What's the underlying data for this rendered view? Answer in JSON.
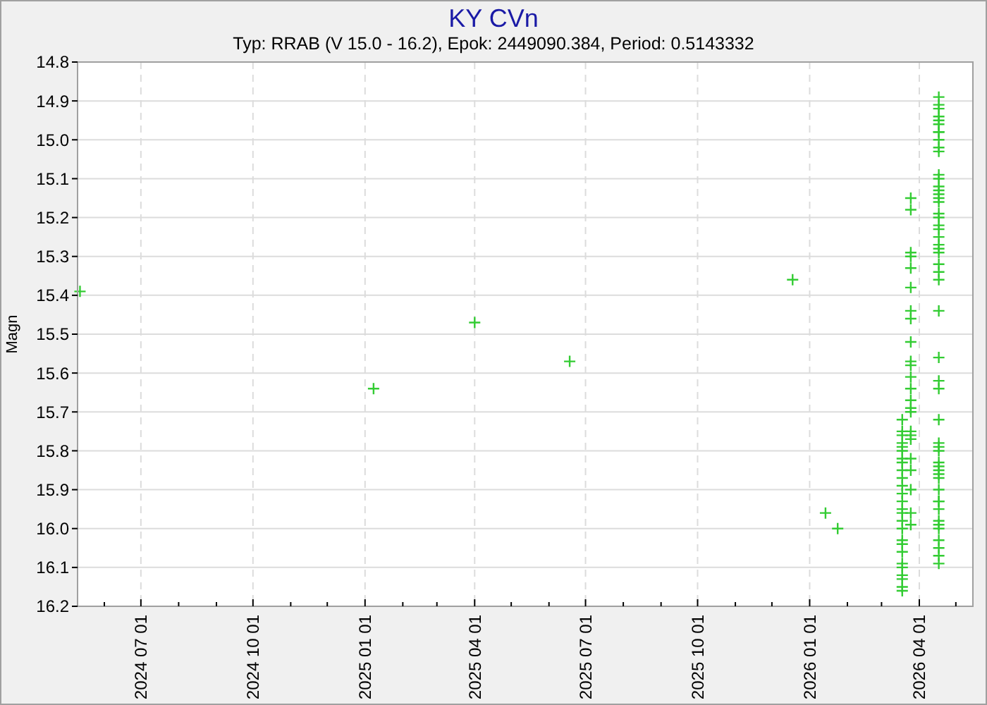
{
  "chart_data": {
    "type": "scatter",
    "title": "KY CVn",
    "subtitle": "Typ: RRAB (V 15.0 - 16.2), Epok: 2449090.384, Period: 0.5143332",
    "ylabel": "Magn",
    "xlim": [
      "2024-05-10",
      "2026-05-15"
    ],
    "ylim": [
      16.2,
      14.8
    ],
    "xticks": [
      {
        "value": "2024-06-01",
        "label": null
      },
      {
        "value": "2024-07-01",
        "label": "2024 07 01"
      },
      {
        "value": "2024-08-01",
        "label": null
      },
      {
        "value": "2024-09-01",
        "label": null
      },
      {
        "value": "2024-10-01",
        "label": "2024 10 01"
      },
      {
        "value": "2024-11-01",
        "label": null
      },
      {
        "value": "2024-12-01",
        "label": null
      },
      {
        "value": "2025-01-01",
        "label": "2025 01 01"
      },
      {
        "value": "2025-02-01",
        "label": null
      },
      {
        "value": "2025-03-01",
        "label": null
      },
      {
        "value": "2025-04-01",
        "label": "2025 04 01"
      },
      {
        "value": "2025-05-01",
        "label": null
      },
      {
        "value": "2025-06-01",
        "label": null
      },
      {
        "value": "2025-07-01",
        "label": "2025 07 01"
      },
      {
        "value": "2025-08-01",
        "label": null
      },
      {
        "value": "2025-09-01",
        "label": null
      },
      {
        "value": "2025-10-01",
        "label": "2025 10 01"
      },
      {
        "value": "2025-11-01",
        "label": null
      },
      {
        "value": "2025-12-01",
        "label": null
      },
      {
        "value": "2026-01-01",
        "label": "2026 01 01"
      },
      {
        "value": "2026-02-01",
        "label": null
      },
      {
        "value": "2026-03-01",
        "label": null
      },
      {
        "value": "2026-04-01",
        "label": "2026 04 01"
      },
      {
        "value": "2026-05-01",
        "label": null
      }
    ],
    "yticks": [
      14.8,
      14.9,
      {
        "value": 15,
        "label": "15.0"
      },
      15.1,
      15.2,
      15.3,
      15.4,
      15.5,
      15.6,
      15.7,
      15.8,
      15.9,
      {
        "value": 16,
        "label": "16.0"
      },
      16.1,
      16.2
    ],
    "grid": true,
    "marker": "cross",
    "series": [
      {
        "color": "#33cc33",
        "x": [
          "2024-05-12",
          "2025-01-08",
          "2025-04-01",
          "2025-06-18",
          "2025-12-18",
          "2026-01-14",
          "2026-01-24",
          "2026-03-18",
          "2026-03-18",
          "2026-03-18",
          "2026-03-18",
          "2026-03-18",
          "2026-03-18",
          "2026-03-18",
          "2026-03-18",
          "2026-03-18",
          "2026-03-18",
          "2026-03-18",
          "2026-03-18",
          "2026-03-18",
          "2026-03-18",
          "2026-03-18",
          "2026-03-18",
          "2026-03-18",
          "2026-03-18",
          "2026-03-18",
          "2026-03-18",
          "2026-03-18",
          "2026-03-18",
          "2026-03-18",
          "2026-03-18",
          "2026-03-18",
          "2026-03-18",
          "2026-03-25",
          "2026-03-25",
          "2026-03-25",
          "2026-03-25",
          "2026-03-25",
          "2026-03-25",
          "2026-03-25",
          "2026-03-25",
          "2026-03-25",
          "2026-03-25",
          "2026-03-25",
          "2026-03-25",
          "2026-03-25",
          "2026-03-25",
          "2026-03-25",
          "2026-03-25",
          "2026-03-25",
          "2026-03-25",
          "2026-03-25",
          "2026-03-25",
          "2026-03-25",
          "2026-03-25",
          "2026-03-25",
          "2026-03-25",
          "2026-04-17",
          "2026-04-17",
          "2026-04-17",
          "2026-04-17",
          "2026-04-17",
          "2026-04-17",
          "2026-04-17",
          "2026-04-17",
          "2026-04-17",
          "2026-04-17",
          "2026-04-17",
          "2026-04-17",
          "2026-04-17",
          "2026-04-17",
          "2026-04-17",
          "2026-04-17",
          "2026-04-17",
          "2026-04-17",
          "2026-04-17",
          "2026-04-17",
          "2026-04-17",
          "2026-04-17",
          "2026-04-17",
          "2026-04-17",
          "2026-04-17",
          "2026-04-17",
          "2026-04-17",
          "2026-04-17",
          "2026-04-17",
          "2026-04-17",
          "2026-04-17",
          "2026-04-17",
          "2026-04-17",
          "2026-04-17",
          "2026-04-17",
          "2026-04-17",
          "2026-04-17",
          "2026-04-17",
          "2026-04-17",
          "2026-04-17",
          "2026-04-17",
          "2026-04-17",
          "2026-04-17",
          "2026-04-17",
          "2026-04-17",
          "2026-04-17",
          "2026-04-17",
          "2026-04-17",
          "2026-04-17",
          "2026-04-17",
          "2026-04-17",
          "2026-04-17",
          "2026-04-17"
        ],
        "values": [
          15.39,
          15.64,
          15.47,
          15.57,
          15.36,
          15.96,
          16.0,
          15.72,
          15.75,
          15.76,
          15.78,
          15.79,
          15.8,
          15.82,
          15.83,
          15.85,
          15.87,
          15.89,
          15.91,
          15.93,
          15.95,
          15.96,
          15.98,
          16.0,
          16.03,
          16.04,
          16.06,
          16.09,
          16.1,
          16.12,
          16.13,
          16.15,
          16.16,
          15.15,
          15.18,
          15.29,
          15.3,
          15.33,
          15.38,
          15.44,
          15.46,
          15.52,
          15.57,
          15.58,
          15.61,
          15.64,
          15.67,
          15.69,
          15.7,
          15.75,
          15.76,
          15.77,
          15.82,
          15.85,
          15.9,
          15.96,
          15.99,
          14.89,
          14.91,
          14.92,
          14.94,
          14.95,
          14.96,
          14.98,
          14.98,
          15.0,
          15.02,
          15.03,
          15.09,
          15.1,
          15.12,
          15.13,
          15.14,
          15.15,
          15.16,
          15.19,
          15.2,
          15.22,
          15.23,
          15.25,
          15.27,
          15.28,
          15.29,
          15.32,
          15.34,
          15.36,
          15.44,
          15.56,
          15.62,
          15.64,
          15.72,
          15.78,
          15.79,
          15.8,
          15.83,
          15.84,
          15.85,
          15.86,
          15.87,
          15.9,
          15.93,
          15.93,
          15.95,
          15.98,
          15.99,
          16.0,
          16.03,
          16.05,
          16.07,
          16.09
        ]
      }
    ]
  }
}
